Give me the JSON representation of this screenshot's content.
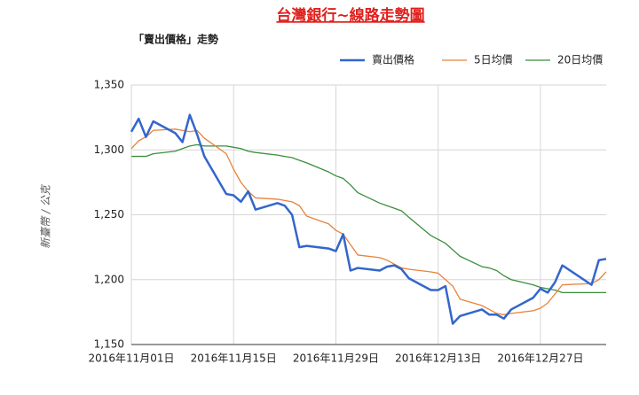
{
  "chart_data": {
    "type": "line",
    "title": "台灣銀行~線路走勢圖",
    "subtitle": "「賣出價格」走勢",
    "y_label": "新臺幣 / 公克",
    "x": [
      "2016-11-01",
      "2016-11-02",
      "2016-11-03",
      "2016-11-04",
      "2016-11-07",
      "2016-11-08",
      "2016-11-09",
      "2016-11-10",
      "2016-11-11",
      "2016-11-14",
      "2016-11-15",
      "2016-11-16",
      "2016-11-17",
      "2016-11-18",
      "2016-11-21",
      "2016-11-22",
      "2016-11-23",
      "2016-11-24",
      "2016-11-25",
      "2016-11-28",
      "2016-11-29",
      "2016-11-30",
      "2016-12-01",
      "2016-12-02",
      "2016-12-05",
      "2016-12-06",
      "2016-12-07",
      "2016-12-08",
      "2016-12-09",
      "2016-12-12",
      "2016-12-13",
      "2016-12-14",
      "2016-12-15",
      "2016-12-16",
      "2016-12-19",
      "2016-12-20",
      "2016-12-21",
      "2016-12-22",
      "2016-12-23",
      "2016-12-26",
      "2016-12-27",
      "2016-12-28",
      "2016-12-29",
      "2016-12-30",
      "2017-01-03",
      "2017-01-04",
      "2017-01-05"
    ],
    "series": [
      {
        "name": "賣出價格",
        "color": "#3366cc",
        "width": 2.5,
        "values": [
          1314,
          1324,
          1310,
          1322,
          1313,
          1306,
          1327,
          1312,
          1295,
          1266,
          1265,
          1260,
          1268,
          1254,
          1259,
          1257,
          1250,
          1225,
          1226,
          1224,
          1222,
          1235,
          1207,
          1209,
          1207,
          1210,
          1211,
          1208,
          1201,
          1192,
          1192,
          1195,
          1166,
          1172,
          1177,
          1173,
          1173,
          1170,
          1177,
          1186,
          1193,
          1190,
          1198,
          1211,
          1196,
          1215,
          1216
        ]
      },
      {
        "name": "5日均價",
        "color": "#e8823a",
        "width": 1.3,
        "values": [
          1301,
          1307,
          1310,
          1315,
          1316,
          1315,
          1314,
          1315,
          1309,
          1297,
          1285,
          1275,
          1268,
          1263,
          1262,
          1261,
          1260,
          1257,
          1249,
          1243,
          1238,
          1235,
          1227,
          1219,
          1217,
          1215,
          1212,
          1209,
          1208,
          1206,
          1205,
          1200,
          1195,
          1185,
          1180,
          1177,
          1174,
          1173,
          1174,
          1176,
          1178,
          1182,
          1189,
          1196,
          1197,
          1200,
          1206
        ]
      },
      {
        "name": "20日均價",
        "color": "#3a8f3a",
        "width": 1.3,
        "values": [
          1295,
          1295,
          1295,
          1297,
          1299,
          1301,
          1303,
          1304,
          1303,
          1303,
          1302,
          1301,
          1299,
          1298,
          1296,
          1295,
          1294,
          1292,
          1290,
          1283,
          1280,
          1278,
          1273,
          1267,
          1259,
          1257,
          1255,
          1253,
          1248,
          1234,
          1231,
          1228,
          1223,
          1218,
          1210,
          1209,
          1207,
          1203,
          1200,
          1196,
          1194,
          1193,
          1192,
          1190,
          1190,
          1190,
          1190
        ]
      }
    ],
    "xlim": [
      "2016-11-01",
      "2017-01-05"
    ],
    "xticks": [
      {
        "value": "2016-11-01",
        "label": "2016年11月01日"
      },
      {
        "value": "2016-11-15",
        "label": "2016年11月15日"
      },
      {
        "value": "2016-11-29",
        "label": "2016年11月29日"
      },
      {
        "value": "2016-12-13",
        "label": "2016年12月13日"
      },
      {
        "value": "2016-12-27",
        "label": "2016年12月27日"
      }
    ],
    "ylim": [
      1150,
      1350
    ],
    "yticks": [
      {
        "value": 1150,
        "label": "1,150"
      },
      {
        "value": 1200,
        "label": "1,200"
      },
      {
        "value": 1250,
        "label": "1,250"
      },
      {
        "value": 1300,
        "label": "1,300"
      },
      {
        "value": 1350,
        "label": "1,350"
      }
    ],
    "grid": true,
    "legend": "top-right"
  }
}
